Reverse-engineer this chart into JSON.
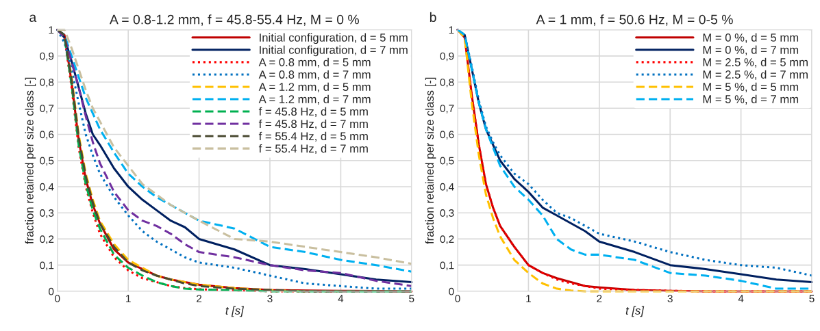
{
  "chart_data": [
    {
      "type": "line",
      "title": "A = 0.8-1.2 mm, f = 45.8-55.4 Hz, M = 0 %",
      "xlabel": "t [s]",
      "ylabel": "fraction retained per size class [-]",
      "annotations": [
        "a"
      ],
      "x": [
        0,
        0.1,
        0.2,
        0.3,
        0.4,
        0.5,
        0.6,
        0.8,
        1.0,
        1.2,
        1.4,
        1.6,
        1.8,
        2.0,
        2.5,
        3,
        3.5,
        4,
        4.5,
        5
      ],
      "xlim": [
        0,
        5
      ],
      "xticks": [
        0,
        1,
        2,
        3,
        4,
        5
      ],
      "ylim": [
        0,
        1
      ],
      "yticks": [
        0,
        {
          "value": 0.1,
          "label": "0,1"
        },
        {
          "value": 0.2,
          "label": "0,2"
        },
        {
          "value": 0.3,
          "label": "0,3"
        },
        {
          "value": 0.4,
          "label": "0,4"
        },
        {
          "value": 0.5,
          "label": "0,5"
        },
        {
          "value": 0.6,
          "label": "0,6"
        },
        {
          "value": 0.7,
          "label": "0,7"
        },
        {
          "value": 0.8,
          "label": "0,8"
        },
        {
          "value": 0.9,
          "label": "0,9"
        },
        1
      ],
      "grid": true,
      "legend": "top right",
      "series": [
        {
          "name": "Initial configuration, d = 5 mm",
          "color": "#c00000",
          "line_style": "solid",
          "values": [
            1,
            0.98,
            0.8,
            0.58,
            0.43,
            0.33,
            0.26,
            0.16,
            0.11,
            0.085,
            0.06,
            0.045,
            0.035,
            0.025,
            0.012,
            0.005,
            0.003,
            0.002,
            0.001,
            0
          ]
        },
        {
          "name": "Initial configuration, d = 7 mm",
          "color": "#002060",
          "line_style": "solid",
          "values": [
            1,
            0.97,
            0.88,
            0.78,
            0.68,
            0.6,
            0.56,
            0.47,
            0.4,
            0.35,
            0.31,
            0.27,
            0.245,
            0.2,
            0.16,
            0.1,
            0.085,
            0.065,
            0.045,
            0.035
          ]
        },
        {
          "name": "A = 0.8 mm, d = 5 mm",
          "color": "#ff0000",
          "line_style": "dotted",
          "values": [
            1,
            0.97,
            0.78,
            0.55,
            0.4,
            0.3,
            0.22,
            0.13,
            0.08,
            0.05,
            0.035,
            0.02,
            0.012,
            0.008,
            0.003,
            0,
            0,
            0,
            null,
            null
          ]
        },
        {
          "name": "A = 0.8 mm, d = 7 mm",
          "color": "#0070c0",
          "line_style": "dotted",
          "values": [
            1,
            0.95,
            0.85,
            0.72,
            0.6,
            0.52,
            0.45,
            0.36,
            0.29,
            0.23,
            0.19,
            0.16,
            0.13,
            0.11,
            0.09,
            0.06,
            0.03,
            0.02,
            0.01,
            0.01
          ]
        },
        {
          "name": "A = 1.2 mm, d = 5 mm",
          "color": "#ffc000",
          "line_style": "dashed",
          "values": [
            1,
            0.98,
            0.82,
            0.6,
            0.45,
            0.35,
            0.27,
            0.18,
            0.12,
            0.09,
            0.06,
            0.045,
            0.035,
            0.025,
            0.012,
            0.004,
            0,
            null,
            null,
            null
          ]
        },
        {
          "name": "A = 1.2 mm, d = 7 mm",
          "color": "#00b0f0",
          "line_style": "dashed",
          "values": [
            1,
            0.98,
            0.9,
            0.82,
            0.74,
            0.68,
            0.62,
            0.53,
            0.45,
            0.4,
            0.36,
            0.33,
            0.3,
            0.27,
            0.24,
            0.17,
            0.15,
            0.12,
            0.1,
            0.075
          ]
        },
        {
          "name": "f = 45.8 Hz, d = 5 mm",
          "color": "#00b050",
          "line_style": "dashed",
          "values": [
            1,
            0.97,
            0.79,
            0.56,
            0.41,
            0.31,
            0.24,
            0.14,
            0.09,
            0.06,
            0.035,
            0.02,
            0.01,
            0.007,
            0.003,
            0,
            0,
            0,
            0,
            0
          ]
        },
        {
          "name": "f = 45.8 Hz, d = 7 mm",
          "color": "#7030a0",
          "line_style": "dashed",
          "values": [
            1,
            0.97,
            0.88,
            0.78,
            0.67,
            0.57,
            0.49,
            0.38,
            0.31,
            0.27,
            0.25,
            0.22,
            0.18,
            0.15,
            0.13,
            0.1,
            0.08,
            0.07,
            0.04,
            0.02
          ]
        },
        {
          "name": "f = 55.4 Hz, d = 5 mm",
          "color": "#4a4a32",
          "line_style": "dashed",
          "values": [
            1,
            0.98,
            0.81,
            0.59,
            0.44,
            0.34,
            0.26,
            0.17,
            0.11,
            0.08,
            0.06,
            0.045,
            0.03,
            0.02,
            0.01,
            0.005,
            0,
            0,
            0,
            0
          ]
        },
        {
          "name": "f = 55.4 Hz, d = 7 mm",
          "color": "#c9bf9f",
          "line_style": "dashed",
          "values": [
            1,
            1,
            0.93,
            0.85,
            0.77,
            0.7,
            0.65,
            0.55,
            0.48,
            0.41,
            0.37,
            0.33,
            0.3,
            0.27,
            0.2,
            0.19,
            0.17,
            0.15,
            0.13,
            0.105
          ]
        }
      ]
    },
    {
      "type": "line",
      "title": "A = 1 mm, f = 50.6 Hz, M = 0-5 %",
      "xlabel": "t [s]",
      "ylabel": "fraction retained per size class [-]",
      "annotations": [
        "b"
      ],
      "x": [
        0,
        0.1,
        0.2,
        0.3,
        0.4,
        0.5,
        0.6,
        0.8,
        1.0,
        1.2,
        1.4,
        1.6,
        1.8,
        2.0,
        2.5,
        3,
        3.5,
        4,
        4.5,
        5
      ],
      "xlim": [
        0,
        5
      ],
      "xticks": [
        0,
        1,
        2,
        3,
        4,
        5
      ],
      "ylim": [
        0,
        1
      ],
      "yticks": [
        0,
        {
          "value": 0.1,
          "label": "0,1"
        },
        {
          "value": 0.2,
          "label": "0,2"
        },
        {
          "value": 0.3,
          "label": "0,3"
        },
        {
          "value": 0.4,
          "label": "0,4"
        },
        {
          "value": 0.5,
          "label": "0,5"
        },
        {
          "value": 0.6,
          "label": "0,6"
        },
        {
          "value": 0.7,
          "label": "0,7"
        },
        {
          "value": 0.8,
          "label": "0,8"
        },
        {
          "value": 0.9,
          "label": "0,9"
        },
        1
      ],
      "grid": true,
      "legend": "top right",
      "series": [
        {
          "name": "M = 0 %, d = 5 mm",
          "color": "#c00000",
          "line_style": "solid",
          "values": [
            1,
            0.97,
            0.75,
            0.56,
            0.41,
            0.32,
            0.25,
            0.17,
            0.1,
            0.07,
            0.05,
            0.035,
            0.02,
            0.015,
            0.005,
            0.002,
            0,
            0,
            0,
            0
          ]
        },
        {
          "name": "M = 0 %, d = 7 mm",
          "color": "#002060",
          "line_style": "solid",
          "values": [
            1,
            0.98,
            0.85,
            0.72,
            0.62,
            0.56,
            0.5,
            0.43,
            0.38,
            0.32,
            0.29,
            0.26,
            0.23,
            0.19,
            0.15,
            0.1,
            0.085,
            0.065,
            0.045,
            0.035
          ]
        },
        {
          "name": "M = 2.5 %, d = 5 mm",
          "color": "#ff0000",
          "line_style": "dotted",
          "values": [
            1,
            0.97,
            0.75,
            0.56,
            0.41,
            0.32,
            0.25,
            0.17,
            0.1,
            0.07,
            0.045,
            0.03,
            0.02,
            0.01,
            0.005,
            0.002,
            0,
            0,
            0,
            0
          ]
        },
        {
          "name": "M = 2.5 %, d = 7 mm",
          "color": "#0070c0",
          "line_style": "dotted",
          "values": [
            1,
            0.98,
            0.86,
            0.73,
            0.63,
            0.57,
            0.52,
            0.45,
            0.41,
            0.35,
            0.3,
            0.28,
            0.25,
            0.22,
            0.19,
            0.15,
            0.12,
            0.1,
            0.09,
            0.06
          ]
        },
        {
          "name": "M = 5 %, d = 5 mm",
          "color": "#ffc000",
          "line_style": "dashed",
          "values": [
            1,
            0.97,
            0.72,
            0.52,
            0.37,
            0.28,
            0.21,
            0.12,
            0.07,
            0.03,
            0.01,
            0.003,
            0,
            0,
            0,
            0,
            0,
            0,
            0,
            0
          ]
        },
        {
          "name": "M = 5 %, d = 7 mm",
          "color": "#00b0f0",
          "line_style": "dashed",
          "values": [
            1,
            0.98,
            0.85,
            0.72,
            0.62,
            0.55,
            0.48,
            0.4,
            0.35,
            0.29,
            0.2,
            0.16,
            0.14,
            0.14,
            0.12,
            0.07,
            0.06,
            0.04,
            0.01,
            0.01
          ]
        }
      ]
    }
  ]
}
